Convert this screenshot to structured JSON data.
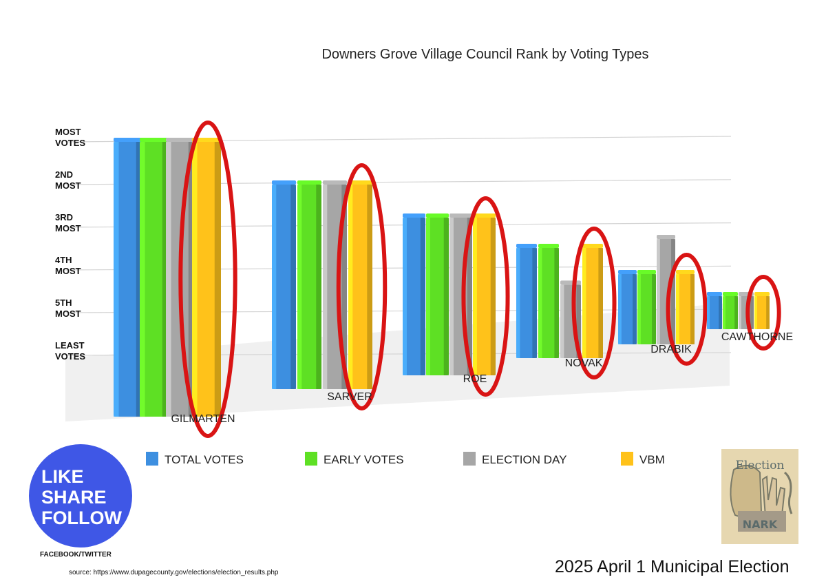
{
  "chart_data": {
    "type": "bar",
    "title": "Downers Grove Village Council Rank by Voting Types",
    "y_ticks": [
      {
        "rank": 6,
        "lines": [
          "MOST",
          "VOTES"
        ]
      },
      {
        "rank": 5,
        "lines": [
          "2ND",
          "MOST"
        ]
      },
      {
        "rank": 4,
        "lines": [
          "3RD",
          "MOST"
        ]
      },
      {
        "rank": 3,
        "lines": [
          "4TH",
          "MOST"
        ]
      },
      {
        "rank": 2,
        "lines": [
          "5TH",
          "MOST"
        ]
      },
      {
        "rank": 1,
        "lines": [
          "LEAST",
          "VOTES"
        ]
      }
    ],
    "categories": [
      "GILMARTEN",
      "SARVER",
      "ROE",
      "NOVAK",
      "DRABIK",
      "CAWTHORNE"
    ],
    "series": [
      {
        "name": "TOTAL VOTES",
        "values": [
          6,
          5,
          4,
          3,
          2,
          1
        ]
      },
      {
        "name": "EARLY VOTES",
        "values": [
          6,
          5,
          4,
          3,
          2,
          1
        ]
      },
      {
        "name": "ELECTION DAY",
        "values": [
          6,
          5,
          4,
          2,
          3,
          1
        ]
      },
      {
        "name": "VBM",
        "values": [
          6,
          5,
          4,
          3,
          2,
          1
        ]
      }
    ],
    "colors": {
      "TOTAL VOTES": "#3d8fe0",
      "EARLY VOTES": "#5ee024",
      "ELECTION DAY": "#a6a6a6",
      "VBM": "#ffc21a",
      "highlight": "#d91414"
    },
    "highlighted_series": "VBM",
    "legend_position": "bottom",
    "grid": true
  },
  "social": {
    "lines": [
      "LIKE",
      "SHARE",
      "FOLLOW"
    ],
    "caption": "FACEBOOK/TWITTER"
  },
  "source_text": "source: https://www.dupagecounty.gov/elections/election_results.php",
  "footer_text": "2025 April 1 Municipal Election",
  "badge": {
    "top": "Election",
    "bottom": "NARK"
  }
}
